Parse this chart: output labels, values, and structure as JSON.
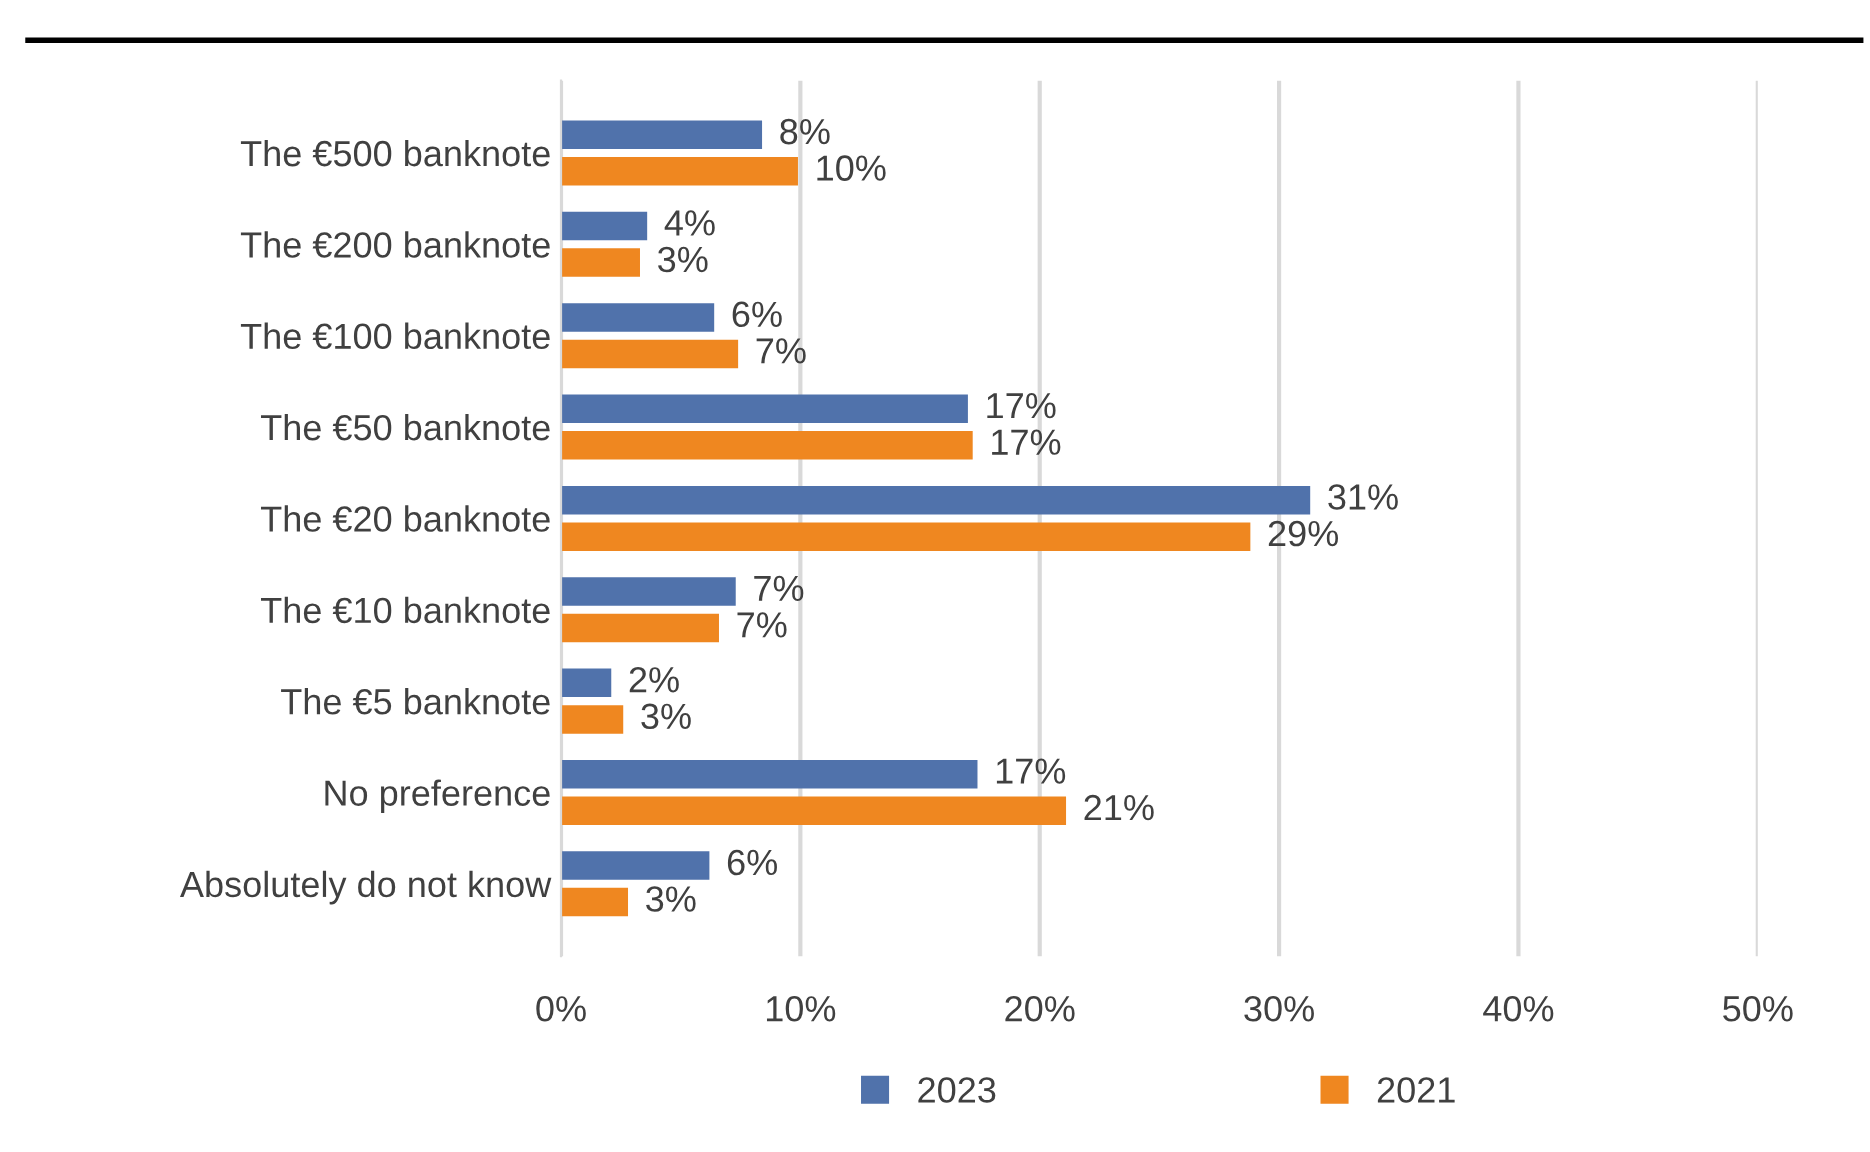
{
  "chart_data": {
    "type": "bar",
    "orientation": "horizontal",
    "categories": [
      "The €500 banknote",
      "The €200 banknote",
      "The €100 banknote",
      "The €50 banknote",
      "The €20 banknote",
      "The €10 banknote",
      "The €5 banknote",
      "No preference",
      "Absolutely do not know"
    ],
    "series": [
      {
        "name": "2023",
        "color": "#5072ab",
        "values": [
          8.4,
          3.6,
          6.4,
          17.0,
          31.3,
          7.3,
          2.1,
          17.4,
          6.2
        ],
        "value_labels": [
          "8%",
          "4%",
          "6%",
          "17%",
          "31%",
          "7%",
          "2%",
          "17%",
          "6%"
        ]
      },
      {
        "name": "2021",
        "color": "#ef8720",
        "values": [
          9.9,
          3.3,
          7.4,
          17.2,
          28.8,
          6.6,
          2.6,
          21.1,
          2.8
        ],
        "value_labels": [
          "10%",
          "3%",
          "7%",
          "17%",
          "29%",
          "7%",
          "3%",
          "21%",
          "3%"
        ]
      }
    ],
    "xlim": [
      0,
      50
    ],
    "xticks": [
      {
        "value": 0,
        "label": "0%"
      },
      {
        "value": 10,
        "label": "10%"
      },
      {
        "value": 20,
        "label": "20%"
      },
      {
        "value": 30,
        "label": "30%"
      },
      {
        "value": 40,
        "label": "40%"
      },
      {
        "value": 50,
        "label": "50%"
      }
    ],
    "grid": "x",
    "legend": "bottom"
  }
}
